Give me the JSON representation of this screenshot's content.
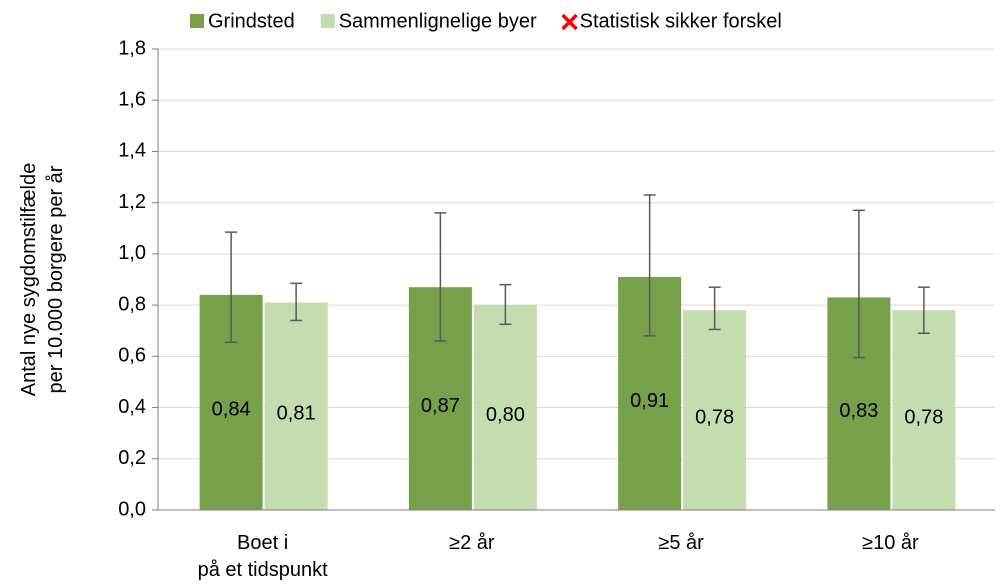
{
  "chart_data": {
    "type": "bar",
    "y_label": [
      "Antal nye sygdomstilfælde",
      "per 10.000 borgere per år"
    ],
    "categories": [
      "Boet i\npå et tidspunkt",
      "≥2 år",
      "≥5 år",
      "≥10 år"
    ],
    "series": [
      {
        "name": "Grindsted",
        "color": "#77a04a",
        "values": [
          0.84,
          0.87,
          0.91,
          0.83
        ],
        "value_labels": [
          "0,84",
          "0,87",
          "0,91",
          "0,83"
        ],
        "ci_low": [
          0.655,
          0.66,
          0.68,
          0.595
        ],
        "ci_high": [
          1.085,
          1.16,
          1.23,
          1.17
        ]
      },
      {
        "name": "Sammenlignelige byer",
        "color": "#c5dbb0",
        "values": [
          0.81,
          0.8,
          0.78,
          0.78
        ],
        "value_labels": [
          "0,81",
          "0,80",
          "0,78",
          "0,78"
        ],
        "ci_low": [
          0.74,
          0.725,
          0.705,
          0.69
        ],
        "ci_high": [
          0.885,
          0.88,
          0.87,
          0.87
        ]
      }
    ],
    "legend_extra": {
      "name": "Statistisk sikker forskel",
      "color": "#ff0000"
    },
    "error_color": "#595959",
    "ylim": [
      0,
      1.8
    ],
    "yticks": [
      {
        "value": 0,
        "label": "0,0"
      },
      {
        "value": 0.2,
        "label": "0,2"
      },
      {
        "value": 0.4,
        "label": "0,4"
      },
      {
        "value": 0.6,
        "label": "0,6"
      },
      {
        "value": 0.8,
        "label": "0,8"
      },
      {
        "value": 1.0,
        "label": "1,0"
      },
      {
        "value": 1.2,
        "label": "1,2"
      },
      {
        "value": 1.4,
        "label": "1,4"
      },
      {
        "value": 1.6,
        "label": "1,6"
      },
      {
        "value": 1.8,
        "label": "1,8"
      }
    ],
    "grid": true,
    "legend_position": "top"
  }
}
